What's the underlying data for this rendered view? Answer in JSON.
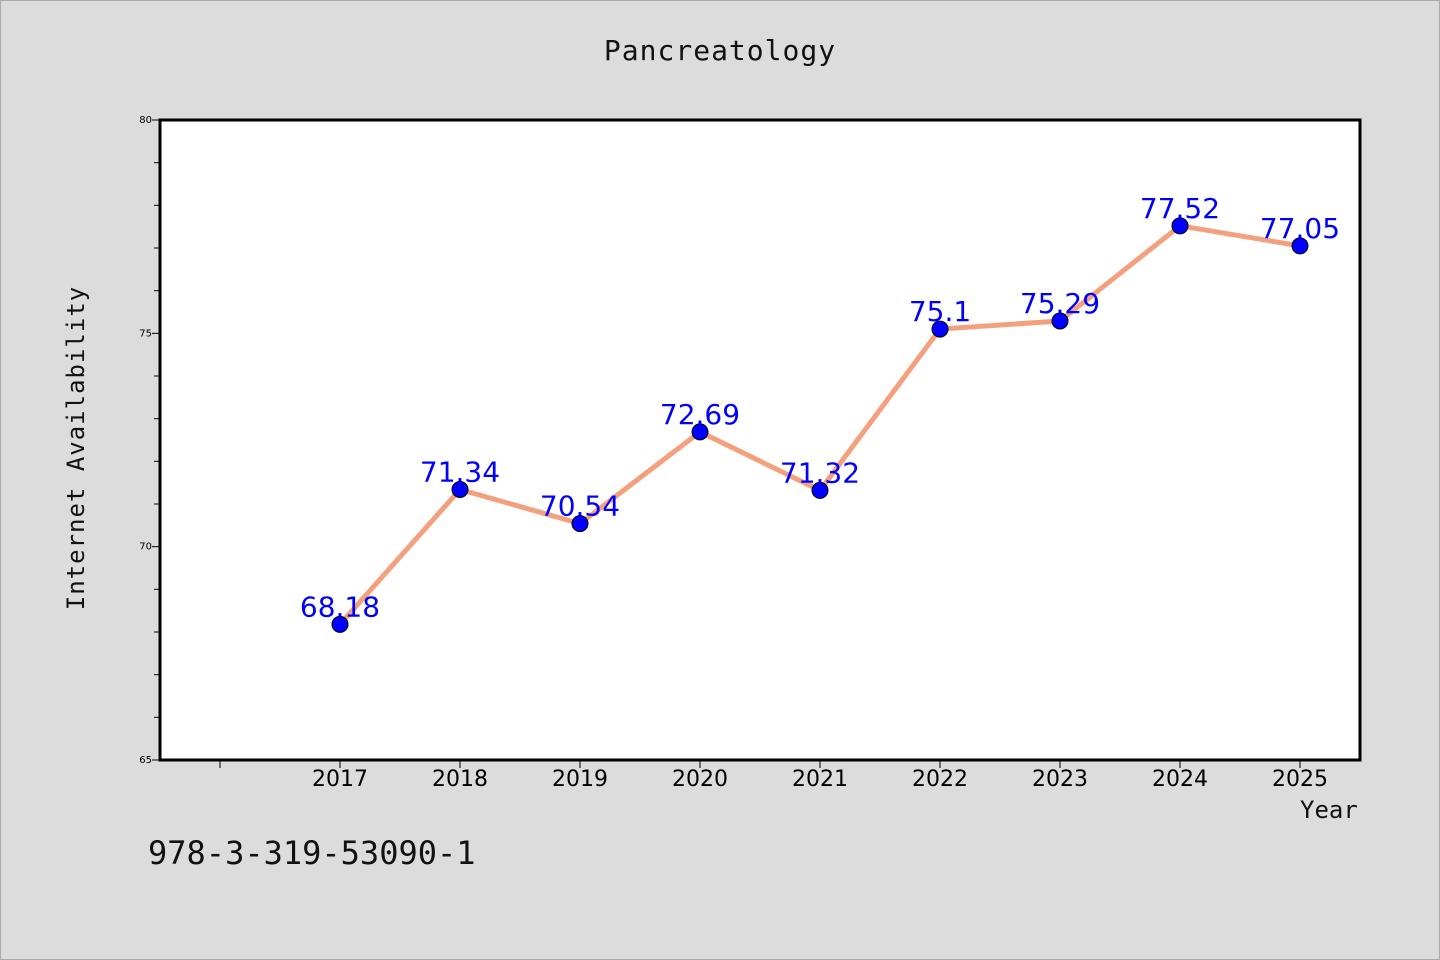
{
  "chart_data": {
    "type": "line",
    "title": "Pancreatology",
    "xlabel": "Year",
    "ylabel": "Internet Availability",
    "categories": [
      "2017",
      "2018",
      "2019",
      "2020",
      "2021",
      "2022",
      "2023",
      "2024",
      "2025"
    ],
    "values": [
      68.18,
      71.34,
      70.54,
      72.69,
      71.32,
      75.1,
      75.29,
      77.52,
      77.05
    ],
    "data_labels": [
      "68.18",
      "71.34",
      "70.54",
      "72.69",
      "71.32",
      "75.1",
      "75.29",
      "77.52",
      "77.05"
    ],
    "ylim": [
      65,
      80
    ],
    "y_ticks": [
      65,
      70,
      75,
      80
    ],
    "y_tick_labels": [
      "65",
      "70",
      "75",
      "80"
    ],
    "grid": false,
    "line_color": "#f4a07e",
    "marker_color": "#0000ff",
    "label_color": "#0000ff"
  },
  "footer_text": "978-3-319-53090-1"
}
